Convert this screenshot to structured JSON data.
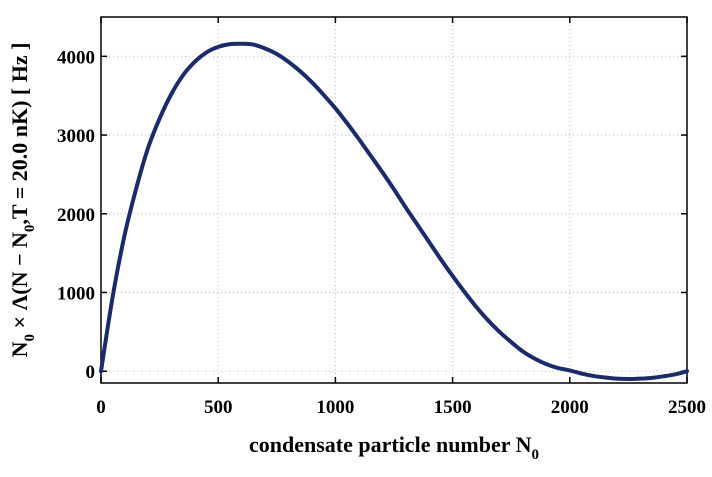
{
  "chart_data": {
    "type": "line",
    "xlabel": "condensate particle number N",
    "xlabel_sub": "0",
    "ylabel": {
      "p1": "N",
      "p1_sub": "0",
      "p2": " × Λ(N − N",
      "p2_sub": "0",
      "p3": ",T = 20.0 nK) [ Hz ]"
    },
    "xlim": [
      0,
      2500
    ],
    "ylim": [
      -150,
      4500
    ],
    "xticks": [
      0,
      500,
      1000,
      1500,
      2000,
      2500
    ],
    "yticks": [
      0,
      1000,
      2000,
      3000,
      4000
    ],
    "grid": true,
    "series": [
      {
        "color": "#1b2a6b",
        "x": [
          0,
          50,
          100,
          150,
          200,
          250,
          300,
          350,
          400,
          450,
          500,
          550,
          600,
          650,
          700,
          750,
          800,
          850,
          900,
          950,
          1000,
          1050,
          1100,
          1150,
          1200,
          1250,
          1300,
          1350,
          1400,
          1450,
          1500,
          1550,
          1600,
          1650,
          1700,
          1750,
          1800,
          1850,
          1900,
          1950,
          2000,
          2050,
          2100,
          2150,
          2200,
          2250,
          2300,
          2350,
          2400,
          2450,
          2500
        ],
        "y": [
          0,
          950,
          1720,
          2320,
          2830,
          3210,
          3520,
          3760,
          3930,
          4050,
          4120,
          4155,
          4160,
          4150,
          4100,
          4030,
          3930,
          3810,
          3670,
          3510,
          3340,
          3150,
          2950,
          2740,
          2530,
          2310,
          2080,
          1860,
          1640,
          1420,
          1210,
          1010,
          820,
          650,
          500,
          370,
          250,
          160,
          90,
          40,
          10,
          -30,
          -60,
          -80,
          -95,
          -100,
          -95,
          -85,
          -65,
          -40,
          0
        ]
      }
    ]
  }
}
